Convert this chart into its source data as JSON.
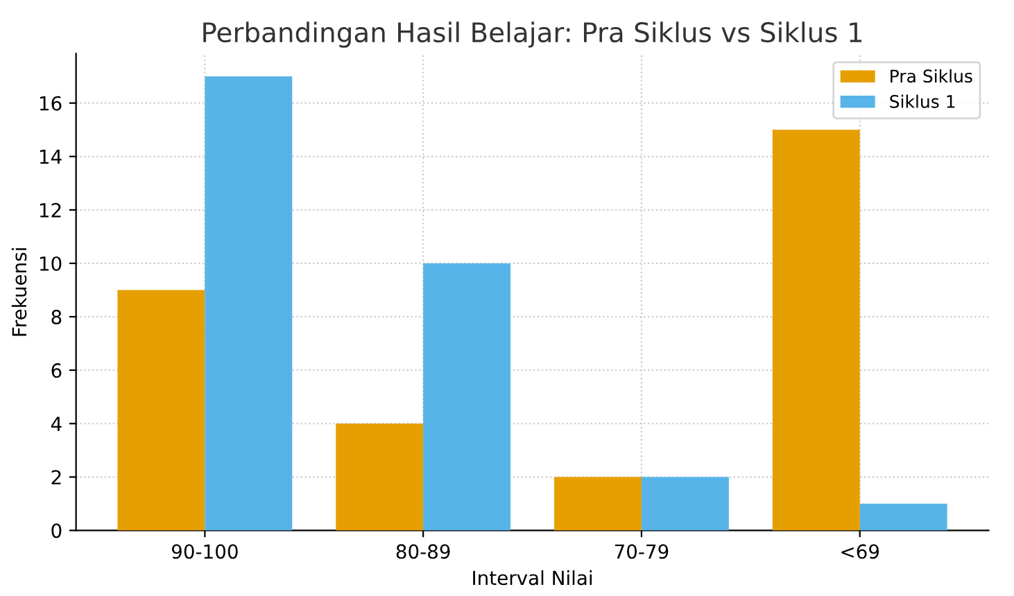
{
  "chart_data": {
    "type": "bar",
    "title": "Perbandingan Hasil Belajar: Pra Siklus vs Siklus 1",
    "xlabel": "Interval Nilai",
    "ylabel": "Frekuensi",
    "categories": [
      "90-100",
      "80-89",
      "70-79",
      "<69"
    ],
    "series": [
      {
        "name": "Pra Siklus",
        "color": "#e69f00",
        "values": [
          9,
          4,
          2,
          15
        ]
      },
      {
        "name": "Siklus 1",
        "color": "#56b4e9",
        "values": [
          17,
          10,
          2,
          1
        ]
      }
    ],
    "ylim": [
      0,
      17.85
    ],
    "yticks": [
      0,
      2,
      4,
      6,
      8,
      10,
      12,
      14,
      16
    ],
    "grid": true,
    "legend": "top right"
  }
}
